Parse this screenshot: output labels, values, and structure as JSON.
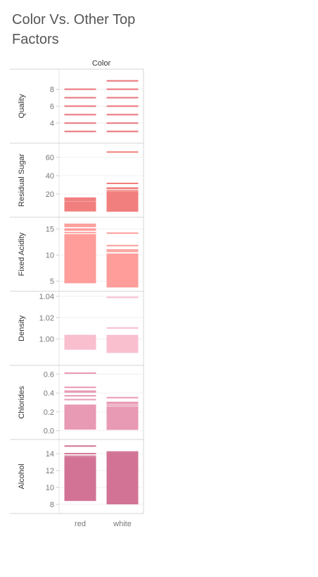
{
  "chart_data": {
    "type": "bar",
    "title": "Color Vs. Other Top Factors",
    "column_header": "Color",
    "categories": [
      "red",
      "white"
    ],
    "panels": [
      {
        "name": "Quality",
        "ylim": [
          2.2,
          9.8
        ],
        "ticks": [
          4,
          6,
          8
        ],
        "tick_labels": [
          "4",
          "6",
          "8"
        ],
        "color": "#e8737a",
        "bars": [
          {
            "category": "red",
            "from": 3,
            "to": 3
          },
          {
            "category": "white",
            "from": 3,
            "to": 3
          }
        ],
        "lines": {
          "red": [
            3,
            4,
            5,
            6,
            7,
            8
          ],
          "white": [
            3,
            4,
            5,
            6,
            7,
            8,
            9
          ]
        }
      },
      {
        "name": "Residual Sugar",
        "ylim": [
          0,
          70
        ],
        "ticks": [
          20,
          40,
          60
        ],
        "tick_labels": [
          "20",
          "40",
          "60"
        ],
        "color": "#f07f7e",
        "bars": [
          {
            "category": "red",
            "from": 0.9,
            "to": 12
          },
          {
            "category": "white",
            "from": 0.6,
            "to": 22.5
          }
        ],
        "lines": {
          "red": [
            13,
            13.8,
            15.4,
            15.5
          ],
          "white": [
            23.5,
            26,
            26.5,
            31.5,
            65.8
          ]
        }
      },
      {
        "name": "Fixed Acidity",
        "ylim": [
          4,
          16.3
        ],
        "ticks": [
          5,
          10,
          15
        ],
        "tick_labels": [
          "5",
          "10",
          "15"
        ],
        "color": "#fe9d9a",
        "bars": [
          {
            "category": "red",
            "from": 4.6,
            "to": 14
          },
          {
            "category": "white",
            "from": 3.8,
            "to": 10.3
          }
        ],
        "lines": {
          "red": [
            14.3,
            14.8,
            15.0,
            15.5,
            15.6,
            15.9
          ],
          "white": [
            10.7,
            11.0,
            11.8,
            14.2
          ]
        }
      },
      {
        "name": "Density",
        "ylim": [
          0.98,
          1.04
        ],
        "ticks": [
          1.0,
          1.02,
          1.04
        ],
        "tick_labels": [
          "1.00",
          "1.02",
          "1.04"
        ],
        "color": "#f9bfcf",
        "bars": [
          {
            "category": "red",
            "from": 0.99,
            "to": 1.004
          },
          {
            "category": "white",
            "from": 0.987,
            "to": 1.0039
          }
        ],
        "lines": {
          "red": [],
          "white": [
            1.0103,
            1.039
          ]
        }
      },
      {
        "name": "Chlorides",
        "ylim": [
          -0.04,
          0.64
        ],
        "ticks": [
          0.0,
          0.2,
          0.4,
          0.6
        ],
        "tick_labels": [
          "0.0",
          "0.2",
          "0.4",
          "0.6"
        ],
        "color": "#e899b3",
        "bars": [
          {
            "category": "red",
            "from": 0.012,
            "to": 0.27
          },
          {
            "category": "white",
            "from": 0.009,
            "to": 0.235
          }
        ],
        "lines": {
          "red": [
            0.27,
            0.33,
            0.37,
            0.41,
            0.42,
            0.46,
            0.61
          ],
          "white": [
            0.24,
            0.25,
            0.27,
            0.29,
            0.3,
            0.35
          ]
        }
      },
      {
        "name": "Alcohol",
        "ylim": [
          7.5,
          15.1
        ],
        "ticks": [
          8,
          10,
          12,
          14
        ],
        "tick_labels": [
          "8",
          "10",
          "12",
          "14"
        ],
        "color": "#d27395",
        "bars": [
          {
            "category": "red",
            "from": 8.4,
            "to": 13.6
          },
          {
            "category": "white",
            "from": 8.0,
            "to": 14.0
          }
        ],
        "lines": {
          "red": [
            8.5,
            13.7,
            14.0,
            14.9
          ],
          "white": [
            8.2,
            14.05,
            14.2
          ]
        }
      }
    ]
  }
}
